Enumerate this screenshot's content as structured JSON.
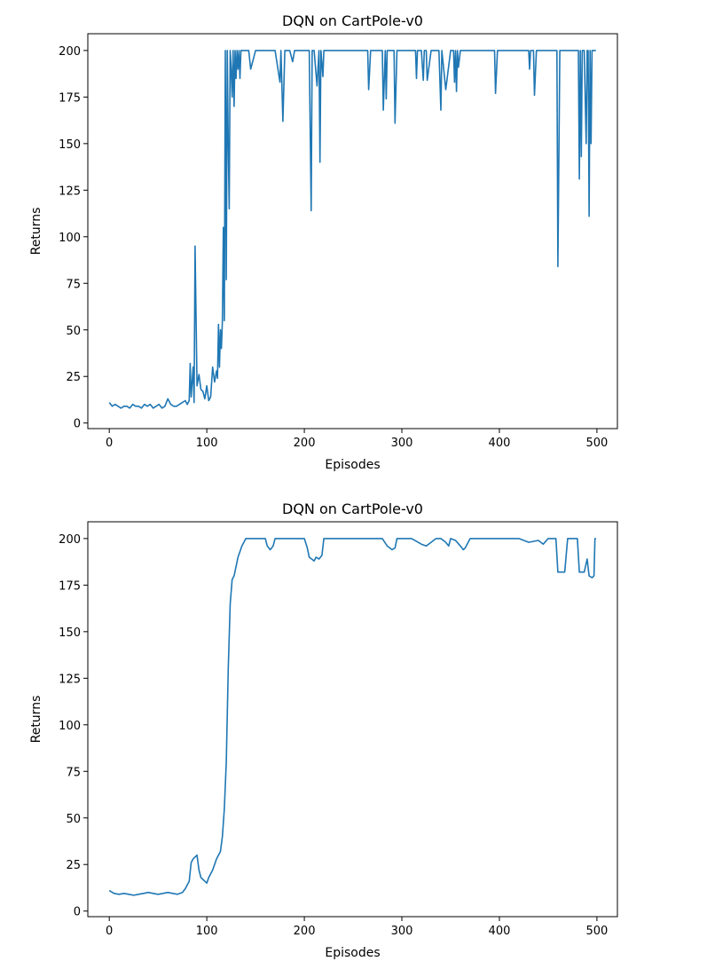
{
  "chart_data": [
    {
      "type": "line",
      "title": "DQN on CartPole-v0",
      "xlabel": "Episodes",
      "ylabel": "Returns",
      "xlim": [
        -22,
        521
      ],
      "ylim": [
        -3,
        209
      ],
      "xticks": [
        0,
        100,
        200,
        300,
        400,
        500
      ],
      "yticks": [
        0,
        25,
        50,
        75,
        100,
        125,
        150,
        175,
        200
      ],
      "xtick_labels": [
        "0",
        "100",
        "200",
        "300",
        "400",
        "500"
      ],
      "ytick_labels": [
        "0",
        "25",
        "50",
        "75",
        "100",
        "125",
        "150",
        "175",
        "200"
      ],
      "grid": false,
      "color": "#1f77b4",
      "series": [
        {
          "x": [
            0,
            3,
            6,
            9,
            12,
            15,
            18,
            21,
            24,
            27,
            30,
            33,
            36,
            39,
            42,
            45,
            48,
            51,
            54,
            57,
            60,
            63,
            66,
            69,
            72,
            75,
            78,
            80,
            82,
            83,
            84,
            86,
            87,
            88,
            90,
            92,
            94,
            96,
            98,
            100,
            102,
            104,
            106,
            108,
            110,
            111,
            112,
            113,
            114,
            115,
            116,
            117,
            118,
            119,
            120,
            121,
            122,
            123,
            124,
            125,
            126,
            127,
            128,
            129,
            130,
            131,
            132,
            133,
            134,
            135,
            137,
            140,
            143,
            145,
            150,
            160,
            170,
            175,
            176,
            178,
            180,
            185,
            188,
            190,
            200,
            205,
            207,
            208,
            210,
            213,
            215,
            216,
            217,
            219,
            220,
            225,
            240,
            265,
            266,
            268,
            275,
            280,
            281,
            283,
            284,
            285,
            290,
            292,
            293,
            295,
            310,
            314,
            315,
            316,
            320,
            322,
            323,
            325,
            326,
            330,
            335,
            338,
            340,
            341,
            345,
            350,
            353,
            354,
            355,
            356,
            357,
            358,
            360,
            370,
            395,
            396,
            398,
            420,
            430,
            431,
            432,
            435,
            436,
            438,
            450,
            457,
            459,
            460,
            462,
            470,
            480,
            481,
            482,
            483,
            484,
            485,
            487,
            489,
            490,
            491,
            492,
            493,
            494,
            495,
            496,
            499
          ],
          "values": [
            11,
            9,
            10,
            9,
            8,
            9,
            9,
            8,
            10,
            9,
            9,
            8,
            10,
            9,
            10,
            8,
            9,
            10,
            8,
            9,
            13,
            10,
            9,
            9,
            10,
            11,
            12,
            10,
            12,
            32,
            14,
            30,
            11,
            95,
            20,
            26,
            18,
            17,
            13,
            20,
            12,
            14,
            30,
            22,
            28,
            24,
            53,
            30,
            50,
            40,
            55,
            105,
            55,
            200,
            77,
            200,
            150,
            115,
            200,
            190,
            175,
            200,
            170,
            200,
            185,
            200,
            190,
            200,
            185,
            200,
            200,
            200,
            200,
            190,
            200,
            200,
            200,
            183,
            200,
            162,
            200,
            200,
            194,
            200,
            200,
            200,
            114,
            200,
            200,
            181,
            200,
            140,
            200,
            186,
            200,
            200,
            200,
            200,
            179,
            200,
            200,
            200,
            168,
            200,
            174,
            200,
            200,
            200,
            161,
            200,
            200,
            200,
            185,
            200,
            200,
            184,
            200,
            200,
            184,
            200,
            200,
            200,
            168,
            200,
            179,
            200,
            200,
            183,
            200,
            178,
            200,
            191,
            200,
            200,
            200,
            177,
            200,
            200,
            200,
            190,
            200,
            200,
            176,
            200,
            200,
            200,
            200,
            84,
            200,
            200,
            200,
            200,
            131,
            200,
            143,
            200,
            200,
            150,
            200,
            200,
            111,
            200,
            150,
            200,
            200,
            200
          ]
        }
      ]
    },
    {
      "type": "line",
      "title": "DQN on CartPole-v0",
      "xlabel": "Episodes",
      "ylabel": "Returns",
      "xlim": [
        -22,
        521
      ],
      "ylim": [
        -3,
        209
      ],
      "xticks": [
        0,
        100,
        200,
        300,
        400,
        500
      ],
      "yticks": [
        0,
        25,
        50,
        75,
        100,
        125,
        150,
        175,
        200
      ],
      "xtick_labels": [
        "0",
        "100",
        "200",
        "300",
        "400",
        "500"
      ],
      "ytick_labels": [
        "0",
        "25",
        "50",
        "75",
        "100",
        "125",
        "150",
        "175",
        "200"
      ],
      "grid": false,
      "color": "#1f77b4",
      "series": [
        {
          "x": [
            0,
            5,
            10,
            15,
            20,
            25,
            30,
            35,
            40,
            45,
            50,
            55,
            60,
            65,
            70,
            75,
            78,
            80,
            82,
            84,
            86,
            88,
            90,
            92,
            94,
            96,
            98,
            100,
            102,
            104,
            106,
            108,
            110,
            112,
            114,
            116,
            118,
            120,
            122,
            124,
            126,
            128,
            130,
            132,
            134,
            136,
            138,
            140,
            150,
            160,
            162,
            165,
            168,
            170,
            172,
            175,
            180,
            185,
            190,
            200,
            203,
            205,
            210,
            212,
            215,
            218,
            220,
            225,
            230,
            240,
            260,
            270,
            280,
            285,
            290,
            293,
            295,
            300,
            310,
            320,
            325,
            330,
            335,
            340,
            345,
            348,
            350,
            355,
            360,
            363,
            365,
            370,
            375,
            380,
            390,
            400,
            410,
            420,
            430,
            440,
            445,
            450,
            455,
            458,
            460,
            465,
            467,
            470,
            480,
            482,
            485,
            487,
            490,
            492,
            495,
            497,
            498,
            499
          ],
          "values": [
            11,
            9.5,
            9,
            9.5,
            9,
            8.5,
            9,
            9.5,
            10,
            9.5,
            9,
            9.5,
            10,
            9.5,
            9,
            10,
            12,
            14,
            16,
            26,
            28,
            29,
            30,
            22,
            18,
            17,
            16,
            15,
            18,
            20,
            22,
            25,
            28,
            30,
            32,
            40,
            55,
            80,
            130,
            165,
            178,
            180,
            185,
            190,
            193,
            196,
            198,
            200,
            200,
            200,
            196,
            194,
            196,
            200,
            200,
            200,
            200,
            200,
            200,
            200,
            195,
            190,
            188,
            190,
            189,
            191,
            200,
            200,
            200,
            200,
            200,
            200,
            200,
            196,
            194,
            195,
            200,
            200,
            200,
            197,
            196,
            198,
            200,
            200,
            198,
            196,
            200,
            199,
            196,
            194,
            195,
            200,
            200,
            200,
            200,
            200,
            200,
            200,
            198,
            199,
            197,
            200,
            200,
            200,
            182,
            182,
            182,
            200,
            200,
            182,
            182,
            182,
            189,
            180,
            179,
            180,
            200,
            200
          ]
        }
      ]
    }
  ]
}
